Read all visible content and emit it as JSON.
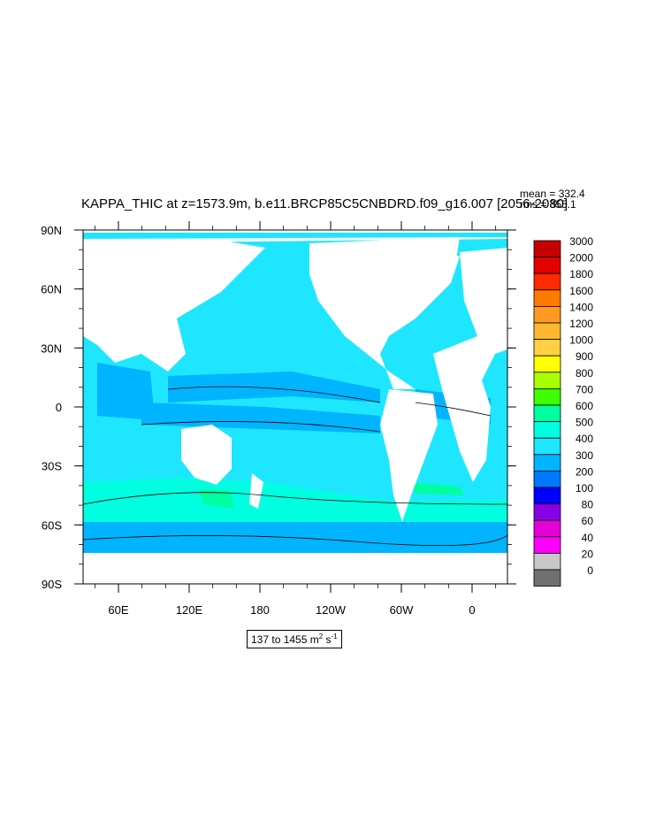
{
  "title": "KAPPA_THIC at z=1573.9m, b.e11.BRCP85C5CNBDRD.f09_g16.007 [2056-2080]",
  "stats": {
    "mean": "mean = 332.4",
    "rms": "rms = 355.1"
  },
  "axes": {
    "lat_labels": [
      "90N",
      "60N",
      "30N",
      "0",
      "30S",
      "60S",
      "90S"
    ],
    "lon_labels": [
      "60E",
      "120E",
      "180",
      "120W",
      "60W",
      "0"
    ]
  },
  "legend": {
    "levels": [
      "3000",
      "2000",
      "1800",
      "1600",
      "1400",
      "1200",
      "1000",
      "900",
      "800",
      "700",
      "600",
      "500",
      "400",
      "300",
      "200",
      "100",
      "80",
      "60",
      "40",
      "20",
      "0"
    ],
    "colors": [
      "#c60000",
      "#e20000",
      "#ff2a00",
      "#ff7a00",
      "#ff9a20",
      "#ffb830",
      "#ffd040",
      "#ffff00",
      "#a8ff00",
      "#3cff00",
      "#00ffa0",
      "#00ffe0",
      "#1ee6ff",
      "#00b4ff",
      "#0078ff",
      "#0000ff",
      "#8a00e6",
      "#e600d8",
      "#ff00ff",
      "#c8c8c8",
      "#707070"
    ]
  },
  "range_text": {
    "prefix": "137 to 1455 m",
    "exp1": "2",
    "mid": " s",
    "exp2": "-1"
  },
  "colors": {
    "ocean_main": "#1ee6ff",
    "ocean_band": "#00b4ff",
    "ocean_high": "#00ffa0",
    "land": "#ffffff"
  }
}
